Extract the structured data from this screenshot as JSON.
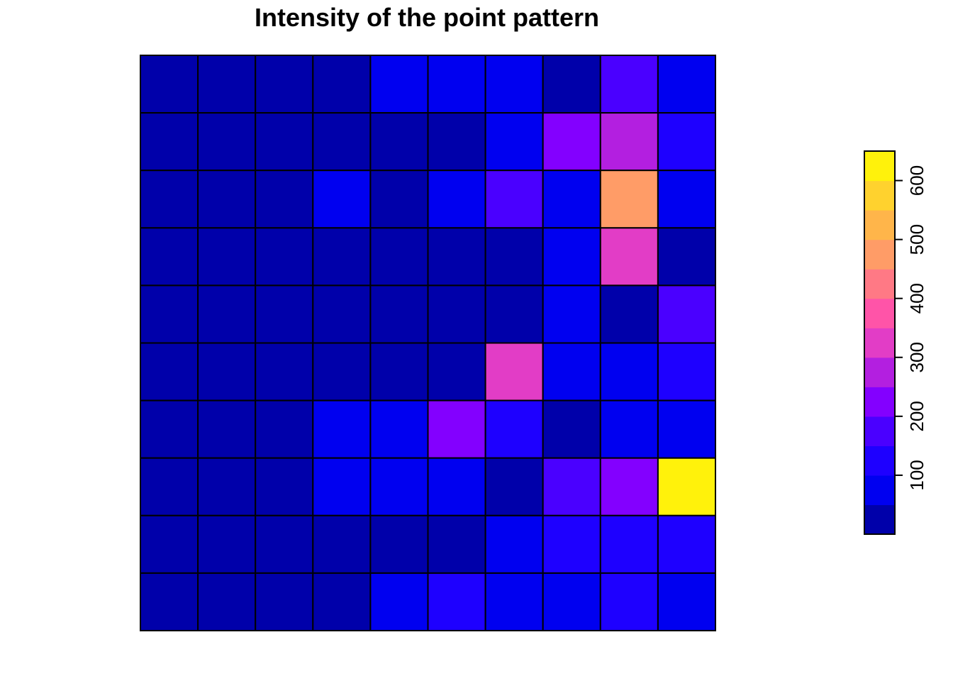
{
  "chart_data": {
    "type": "heatmap",
    "title": "Intensity of the point pattern",
    "xlabel": "",
    "ylabel": "",
    "nrows": 10,
    "ncols": 10,
    "grid": true,
    "legend_position": "right",
    "values": [
      [
        10,
        10,
        10,
        10,
        80,
        80,
        70,
        10,
        150,
        70
      ],
      [
        10,
        10,
        10,
        10,
        20,
        20,
        60,
        200,
        270,
        130
      ],
      [
        10,
        10,
        10,
        70,
        20,
        70,
        190,
        60,
        480,
        60
      ],
      [
        10,
        10,
        10,
        10,
        20,
        20,
        20,
        60,
        320,
        10
      ],
      [
        10,
        10,
        10,
        10,
        20,
        20,
        20,
        60,
        20,
        180
      ],
      [
        10,
        10,
        10,
        10,
        20,
        20,
        320,
        60,
        60,
        120
      ],
      [
        10,
        10,
        10,
        70,
        80,
        230,
        120,
        10,
        60,
        70
      ],
      [
        10,
        10,
        10,
        70,
        70,
        70,
        20,
        170,
        240,
        640
      ],
      [
        10,
        10,
        10,
        10,
        20,
        20,
        60,
        120,
        120,
        130
      ],
      [
        10,
        10,
        10,
        10,
        70,
        130,
        70,
        60,
        130,
        70
      ]
    ],
    "legend": {
      "min": 0,
      "max": 650,
      "ticks": [
        100,
        200,
        300,
        400,
        500,
        600
      ],
      "tick_labels": [
        "100",
        "200",
        "300",
        "400",
        "500",
        "600"
      ],
      "colors": [
        "#0000AA",
        "#0000F0",
        "#1E00FF",
        "#4A00FF",
        "#8300FF",
        "#B31FE0",
        "#E23DC6",
        "#FF54A8",
        "#FF7985",
        "#FF9C67",
        "#FFB54A",
        "#FFD22E",
        "#FFF20B"
      ]
    }
  }
}
